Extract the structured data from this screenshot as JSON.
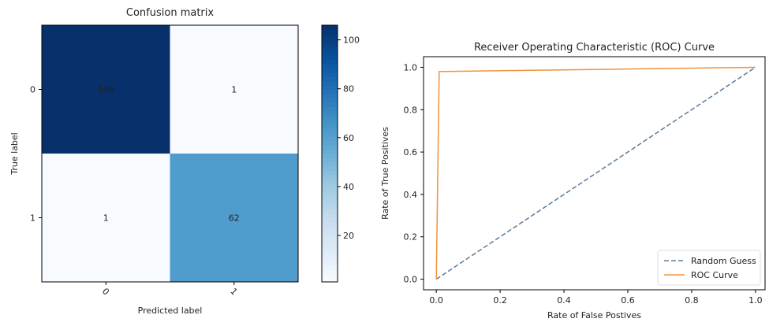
{
  "chart_data": [
    {
      "type": "heatmap",
      "title": "Confusion matrix",
      "x_label": "Predicted label",
      "y_label": "True label",
      "x_categories": [
        "0",
        "1"
      ],
      "y_categories": [
        "0",
        "1"
      ],
      "values": [
        [
          106,
          1
        ],
        [
          1,
          62
        ]
      ],
      "colormap": "Blues",
      "clim": [
        1,
        106
      ],
      "colorbar_ticks": [
        20,
        40,
        60,
        80,
        100
      ]
    },
    {
      "type": "line",
      "title": "Receiver Operating Characteristic (ROC) Curve",
      "x_label": "Rate of False Postives",
      "y_label": "Rate of True Positives",
      "xlim": [
        -0.04,
        1.03
      ],
      "ylim": [
        -0.05,
        1.05
      ],
      "xticks": [
        {
          "value": 0,
          "label": "0.0"
        },
        {
          "value": 0.2,
          "label": "0.2"
        },
        {
          "value": 0.4,
          "label": "0.4"
        },
        {
          "value": 0.6,
          "label": "0.6"
        },
        {
          "value": 0.8,
          "label": "0.8"
        },
        {
          "value": 1,
          "label": "1.0"
        }
      ],
      "yticks": [
        {
          "value": 0,
          "label": "0.0"
        },
        {
          "value": 0.2,
          "label": "0.2"
        },
        {
          "value": 0.4,
          "label": "0.4"
        },
        {
          "value": 0.6,
          "label": "0.6"
        },
        {
          "value": 0.8,
          "label": "0.8"
        },
        {
          "value": 1,
          "label": "1.0"
        }
      ],
      "legend": "lower right",
      "series": [
        {
          "name": "Random Guess",
          "color": "#5b7a99",
          "dash": true,
          "x": [
            0,
            1
          ],
          "values": [
            0,
            1
          ]
        },
        {
          "name": "ROC Curve",
          "color": "#f0923a",
          "dash": false,
          "x": [
            0,
            0.009,
            1
          ],
          "values": [
            0,
            0.98,
            1
          ]
        }
      ]
    }
  ]
}
